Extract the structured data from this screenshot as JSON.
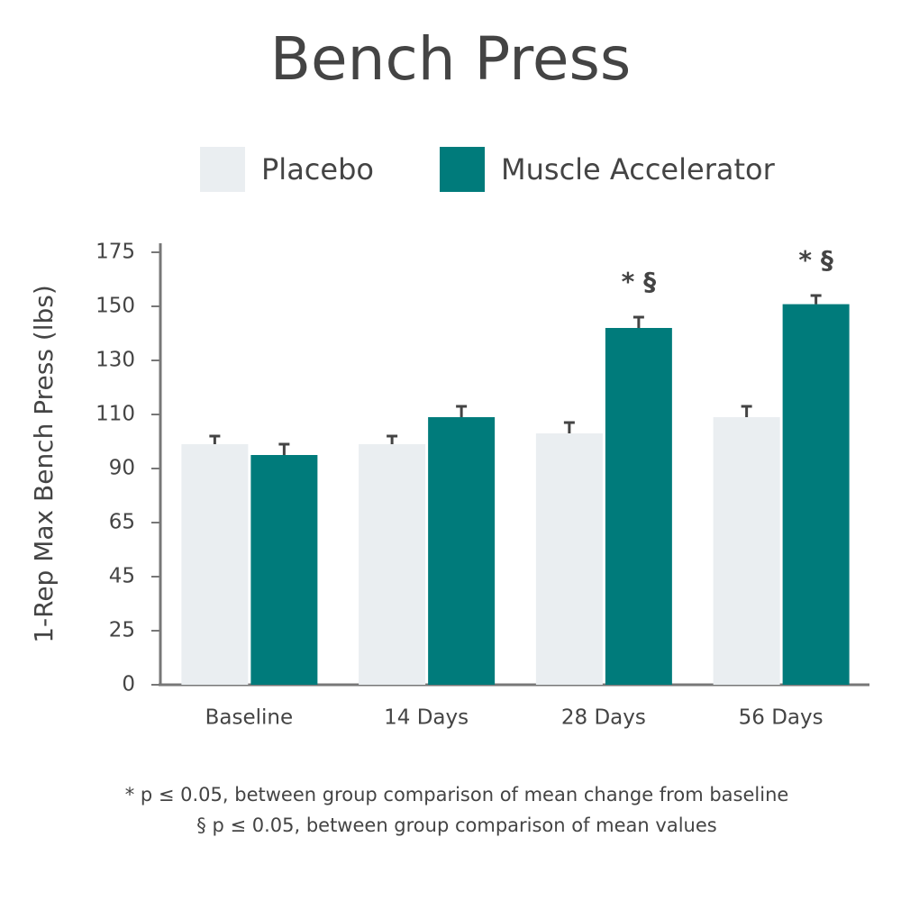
{
  "chart_data": {
    "type": "bar",
    "title": "Bench Press",
    "y_label": "1-Rep Max Bench Press (lbs)",
    "categories": [
      "Baseline",
      "14 Days",
      "28 Days",
      "56 Days"
    ],
    "series": [
      {
        "name": "Placebo",
        "color": "#eaeef1",
        "values": [
          99,
          99,
          103,
          109
        ],
        "errors": [
          3,
          3,
          4,
          4
        ]
      },
      {
        "name": "Muscle Accelerator",
        "color": "#007b7b",
        "values": [
          95,
          109,
          142,
          151
        ],
        "errors": [
          4,
          4,
          4,
          4
        ],
        "markers": [
          null,
          null,
          "* §",
          "* §"
        ]
      }
    ],
    "ylim": [
      0,
      175
    ],
    "yticks": [
      0,
      25,
      45,
      65,
      90,
      110,
      130,
      150,
      175
    ],
    "legend": "top",
    "footnotes": [
      "* p ≤ 0.05, between group comparison of mean change from baseline",
      "§ p ≤ 0.05, between group comparison of mean values"
    ]
  }
}
